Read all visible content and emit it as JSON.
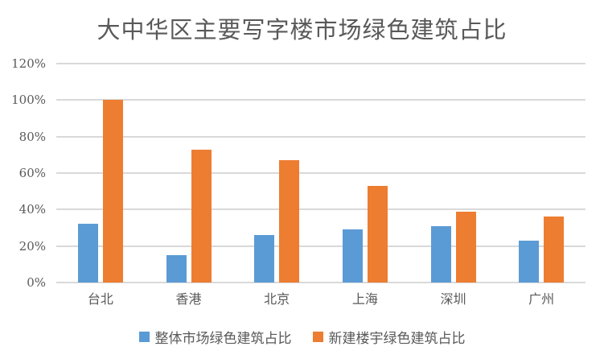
{
  "chart_data": {
    "type": "bar",
    "title": "大中华区主要写字楼市场绿色建筑占比",
    "categories": [
      "台北",
      "香港",
      "北京",
      "上海",
      "深圳",
      "广州"
    ],
    "series": [
      {
        "name": "整体市场绿色建筑占比",
        "color": "#5B9BD5",
        "values": [
          32,
          15,
          26,
          29,
          31,
          23
        ]
      },
      {
        "name": "新建楼宇绿色建筑占比",
        "color": "#ED7D31",
        "values": [
          100,
          73,
          67,
          53,
          39,
          36
        ]
      }
    ],
    "xlabel": "",
    "ylabel": "",
    "ylim": [
      0,
      120
    ],
    "ytick_step": 20,
    "ytick_labels": [
      "0%",
      "20%",
      "40%",
      "60%",
      "80%",
      "100%",
      "120%"
    ],
    "grid": true,
    "legend_position": "bottom"
  },
  "colors": {
    "text": "#595959",
    "gridline": "#D9D9D9",
    "background": "#FFFFFF"
  }
}
